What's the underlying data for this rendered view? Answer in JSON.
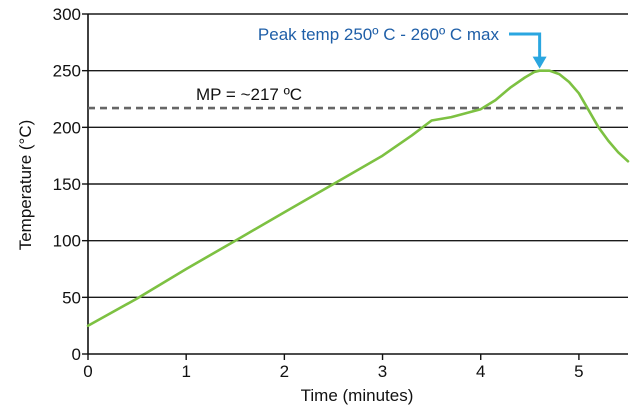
{
  "chart_data": {
    "type": "line",
    "xlabel": "Time (minutes)",
    "ylabel": "Temperature (°C)",
    "xlim": [
      0,
      5.5
    ],
    "ylim": [
      0,
      300
    ],
    "xticks": [
      0,
      1,
      2,
      3,
      4,
      5
    ],
    "xtick_labels": [
      "0",
      "1",
      "2",
      "3",
      "4",
      "5"
    ],
    "yticks": [
      0,
      50,
      100,
      150,
      200,
      250,
      300
    ],
    "ytick_labels": [
      "0",
      "50",
      "100",
      "150",
      "200",
      "250",
      "300"
    ],
    "grid": "horizontal",
    "legend": "none",
    "series": [
      {
        "color": "#7dc142",
        "x": [
          0,
          0.5,
          1.0,
          1.5,
          2.0,
          2.5,
          3.0,
          3.3,
          3.5,
          3.7,
          4.0,
          4.15,
          4.3,
          4.45,
          4.55,
          4.6,
          4.7,
          4.8,
          4.9,
          5.0,
          5.1,
          5.2,
          5.3,
          5.4,
          5.5
        ],
        "y": [
          25,
          49,
          75,
          100,
          125,
          150,
          175,
          193,
          206,
          209,
          216,
          224,
          235,
          244,
          249,
          250,
          250,
          247,
          240,
          230,
          215,
          200,
          188,
          178,
          170
        ]
      }
    ],
    "reference_line": {
      "y": 217,
      "label": "MP = ~217 ºC",
      "color": "#666666"
    },
    "annotation": {
      "text": "Peak temp 250º C - 260º C max",
      "x": 4.6,
      "y": 250,
      "color": "#1f5fa8",
      "arrow_color": "#2aa6e0"
    }
  }
}
